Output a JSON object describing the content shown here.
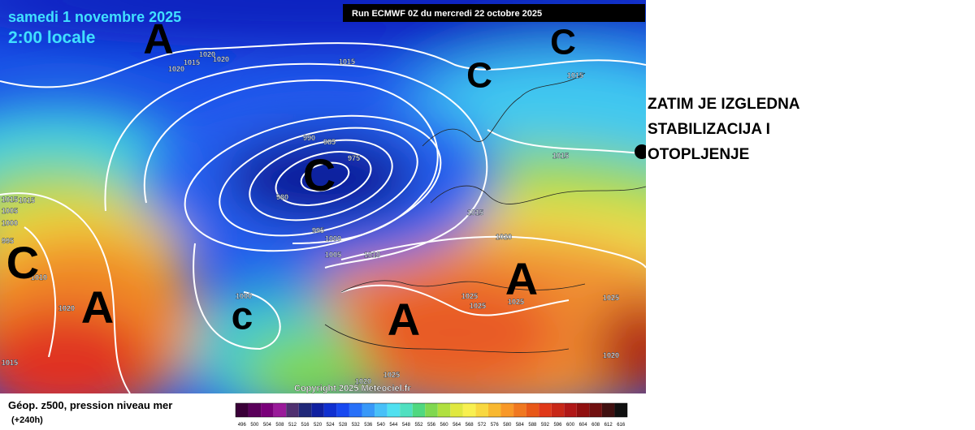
{
  "map": {
    "date": "samedi 1 novembre 2025",
    "time": "2:00 locale",
    "run": "Run ECMWF 0Z du mercredi 22 octobre 2025",
    "copyright": "Copyright 2025 Meteociel.fr",
    "pressure_labels": [
      "1020",
      "1015",
      "1020",
      "1020",
      "1015",
      "1015",
      "990",
      "985",
      "975",
      "980",
      "995",
      "1000",
      "1005",
      "1010",
      "1015",
      "1015",
      "1020",
      "1025",
      "1025",
      "1025",
      "1025",
      "1020",
      "1015",
      "1005",
      "1000",
      "995",
      "1015",
      "1020",
      "1000",
      "1010",
      "1025",
      "1020",
      "1015"
    ],
    "centers": [
      "A",
      "C",
      "C",
      "C",
      "C",
      "A",
      "c",
      "A",
      "A"
    ]
  },
  "legend": {
    "title": "Géop. z500, pression niveau mer",
    "subtitle": "(+240h)",
    "labels": [
      "496",
      "500",
      "504",
      "508",
      "512",
      "516",
      "520",
      "524",
      "528",
      "532",
      "536",
      "540",
      "544",
      "548",
      "552",
      "556",
      "560",
      "564",
      "568",
      "572",
      "576",
      "580",
      "584",
      "588",
      "592",
      "596",
      "600",
      "604",
      "608",
      "612",
      "616"
    ],
    "colors": [
      "#3a0038",
      "#5a005a",
      "#7a007a",
      "#9a1a9a",
      "#503070",
      "#202878",
      "#1020a0",
      "#1030d0",
      "#1848f0",
      "#2870f8",
      "#3898f8",
      "#48c0f8",
      "#50e0f0",
      "#50e0c0",
      "#50d880",
      "#80d850",
      "#b0e040",
      "#e0e840",
      "#f8f050",
      "#f8d840",
      "#f8b830",
      "#f89828",
      "#f07820",
      "#e85818",
      "#e03818",
      "#c82818",
      "#b01818",
      "#901010",
      "#701010",
      "#401010",
      "#101010"
    ]
  },
  "caption": {
    "lines": [
      "ZATIM JE IZGLEDNA",
      "STABILIZACIJA I",
      "OTOPLJENJE"
    ]
  }
}
